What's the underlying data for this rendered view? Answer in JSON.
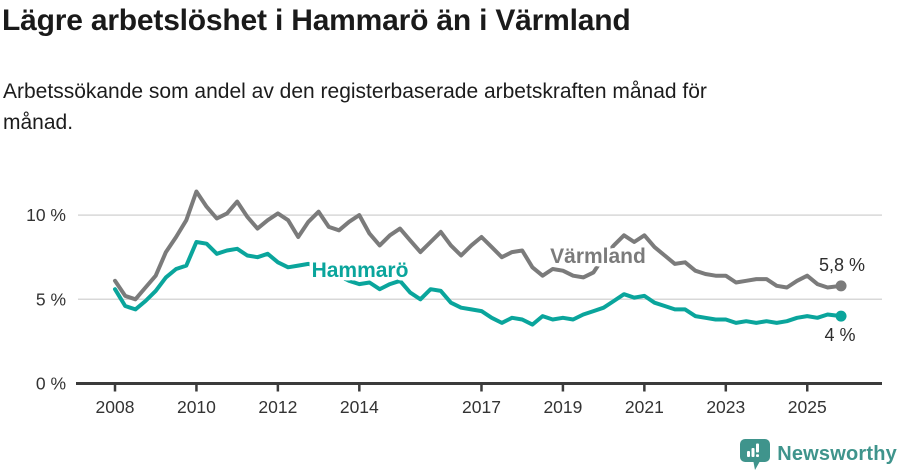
{
  "title": "Lägre arbetslöshet i Hammarö än i Värmland",
  "subtitle": {
    "full": "Arbetssökande som andel av den registerbaserade arbetskraften månad för månad.",
    "line1": "Arbetssökande som andel av den registerbaserade arbetskraften månad för",
    "line2": "månad."
  },
  "footer": {
    "brand": "Newsworthy",
    "icon": "newsworthy-speech-bubble-bar-chart-icon",
    "brand_color": "#3f948c"
  },
  "chart_data": {
    "type": "line",
    "title": "",
    "xlabel": "",
    "ylabel": "",
    "x_unit": "decimal_year",
    "y_unit": "percent",
    "ylim": [
      0,
      12
    ],
    "xlim": [
      2008,
      2025.83
    ],
    "grid": "horizontal",
    "legend_position": "inline-labels",
    "yticks": [
      {
        "value": 0,
        "label": "0 %"
      },
      {
        "value": 5,
        "label": "5 %"
      },
      {
        "value": 10,
        "label": "10 %"
      }
    ],
    "xticks": [
      {
        "value": 2008,
        "label": "2008"
      },
      {
        "value": 2010,
        "label": "2010"
      },
      {
        "value": 2012,
        "label": "2012"
      },
      {
        "value": 2014,
        "label": "2014"
      },
      {
        "value": 2017,
        "label": "2017"
      },
      {
        "value": 2019,
        "label": "2019"
      },
      {
        "value": 2021,
        "label": "2021"
      },
      {
        "value": 2023,
        "label": "2023"
      },
      {
        "value": 2025,
        "label": "2025"
      }
    ],
    "x": [
      2008,
      2008.25,
      2008.5,
      2008.75,
      2009,
      2009.25,
      2009.5,
      2009.75,
      2010,
      2010.25,
      2010.5,
      2010.75,
      2011,
      2011.25,
      2011.5,
      2011.75,
      2012,
      2012.25,
      2012.5,
      2012.75,
      2013,
      2013.25,
      2013.5,
      2013.75,
      2014,
      2014.25,
      2014.5,
      2014.75,
      2015,
      2015.25,
      2015.5,
      2015.75,
      2016,
      2016.25,
      2016.5,
      2016.75,
      2017,
      2017.25,
      2017.5,
      2017.75,
      2018,
      2018.25,
      2018.5,
      2018.75,
      2019,
      2019.25,
      2019.5,
      2019.75,
      2020,
      2020.25,
      2020.5,
      2020.75,
      2021,
      2021.25,
      2021.5,
      2021.75,
      2022,
      2022.25,
      2022.5,
      2022.75,
      2023,
      2023.25,
      2023.5,
      2023.75,
      2024,
      2024.25,
      2024.5,
      2024.75,
      2025,
      2025.25,
      2025.5,
      2025.83
    ],
    "series": [
      {
        "name": "Värmland",
        "color": "#7b7b7b",
        "end_label": "5,8 %",
        "values": [
          6.1,
          5.2,
          5.0,
          5.7,
          6.4,
          7.8,
          8.7,
          9.7,
          11.4,
          10.5,
          9.8,
          10.1,
          10.8,
          9.9,
          9.2,
          9.7,
          10.1,
          9.7,
          8.7,
          9.6,
          10.2,
          9.3,
          9.1,
          9.6,
          10.0,
          8.9,
          8.2,
          8.8,
          9.2,
          8.5,
          7.8,
          8.4,
          9.0,
          8.2,
          7.6,
          8.2,
          8.7,
          8.1,
          7.5,
          7.8,
          7.9,
          6.9,
          6.4,
          6.8,
          6.7,
          6.4,
          6.3,
          6.6,
          7.5,
          8.2,
          8.8,
          8.4,
          8.8,
          8.1,
          7.6,
          7.1,
          7.2,
          6.7,
          6.5,
          6.4,
          6.4,
          6.0,
          6.1,
          6.2,
          6.2,
          5.8,
          5.7,
          6.1,
          6.4,
          5.9,
          5.7,
          5.8
        ]
      },
      {
        "name": "Hammarö",
        "color": "#0aa59c",
        "end_label": "4 %",
        "values": [
          5.6,
          4.6,
          4.4,
          4.9,
          5.5,
          6.3,
          6.8,
          7.0,
          8.4,
          8.3,
          7.7,
          7.9,
          8.0,
          7.6,
          7.5,
          7.7,
          7.2,
          6.9,
          7.0,
          7.1,
          6.9,
          6.6,
          6.4,
          6.1,
          5.9,
          6.0,
          5.6,
          5.9,
          6.1,
          5.4,
          5.0,
          5.6,
          5.5,
          4.8,
          4.5,
          4.4,
          4.3,
          3.9,
          3.6,
          3.9,
          3.8,
          3.5,
          4.0,
          3.8,
          3.9,
          3.8,
          4.1,
          4.3,
          4.5,
          4.9,
          5.3,
          5.1,
          5.2,
          4.8,
          4.6,
          4.4,
          4.4,
          4.0,
          3.9,
          3.8,
          3.8,
          3.6,
          3.7,
          3.6,
          3.7,
          3.6,
          3.7,
          3.9,
          4.0,
          3.9,
          4.1,
          4.0
        ]
      }
    ]
  }
}
